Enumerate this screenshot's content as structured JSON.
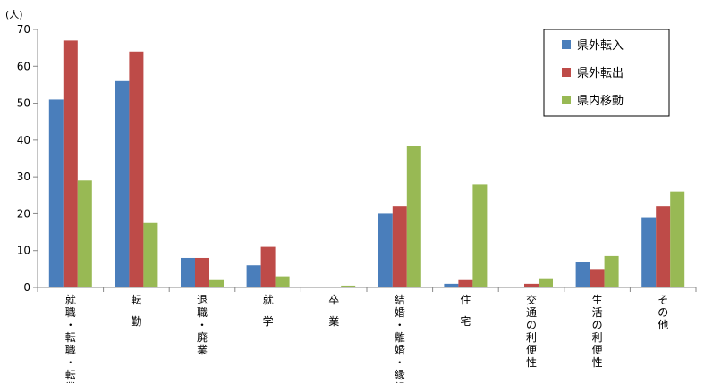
{
  "chart_data": {
    "type": "bar",
    "ylabel": "(人)",
    "xlabel": "",
    "title": "",
    "ylim": [
      0,
      70
    ],
    "yticks": [
      0,
      10,
      20,
      30,
      40,
      50,
      60,
      70
    ],
    "grid": false,
    "legend_position": "top-right",
    "categories": [
      "就職・転職・転業",
      "転勤",
      "退職・廃業",
      "就学",
      "卒業",
      "結婚・離婚・縁組",
      "住宅",
      "交通の利便性",
      "生活の利便性",
      "その他"
    ],
    "series": [
      {
        "name": "県外転入",
        "color": "#4a7ebb",
        "values": [
          51,
          56,
          8,
          6,
          0,
          20,
          1,
          0,
          7,
          19
        ]
      },
      {
        "name": "県外転出",
        "color": "#be4b48",
        "values": [
          67,
          64,
          8,
          11,
          0,
          22,
          2,
          1,
          5,
          22
        ]
      },
      {
        "name": "県内移動",
        "color": "#98b954",
        "values": [
          29,
          17.5,
          2,
          3,
          0.5,
          38.5,
          28,
          2.5,
          8.5,
          26
        ]
      }
    ]
  }
}
